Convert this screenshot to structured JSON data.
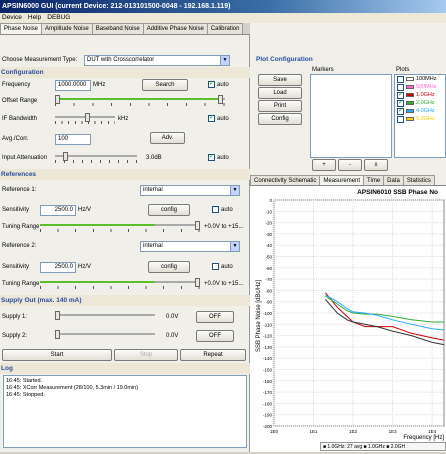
{
  "title": "APSIN6000 GUI (current Device: 212-013101500-0048 - 192.168.1.119)",
  "menu": [
    "Device",
    "Help",
    "DEBUG"
  ],
  "tabs": [
    "Phase Noise",
    "Amplitude Noise",
    "Baseband Noise",
    "Additive Phase Noise",
    "Calibration"
  ],
  "measurement_type": {
    "label": "Choose Measurement Type:",
    "value": "DUT with Crosscorrelator"
  },
  "configuration": {
    "title": "Configuration",
    "frequency_label": "Frequency",
    "frequency_value": "1000.0000",
    "frequency_unit": "MHz",
    "search_label": "Search",
    "offset_label": "Offset Range",
    "bandwidth_label": "IF Bandwidth",
    "bandwidth_unit": "kHz",
    "xcorr_label": "Avg./Corr.",
    "xcorr_value": "100",
    "adv_label": "Adv.",
    "attenuation_label": "Input Attenuation",
    "attenuation_value": "3.0dB",
    "auto_label": "auto"
  },
  "references": {
    "title": "References",
    "ref1_label": "Reference 1:",
    "ref1_source": "internal",
    "ref1_sens_label": "Sensitivity",
    "ref1_sens_value": "2500.0",
    "ref1_sens_unit": "Hz/V",
    "ref1_tuning_label": "Tuning Range",
    "ref1_tuning_value": "+0.0V to +15...",
    "ref2_label": "Reference 2:",
    "ref2_source": "internal",
    "ref2_sens_label": "Sensitivity",
    "ref2_sens_value": "2500.0",
    "ref2_sens_unit": "Hz/V",
    "ref2_tuning_label": "Tuning Range",
    "ref2_tuning_value": "+0.0V to +15...",
    "config_label": "config",
    "auto_label": "auto",
    "ref1_tuning_fraction": 0.72,
    "ref2_tuning_fraction": 0.72
  },
  "supply": {
    "title": "Supply Out (max. 140 mA)",
    "s1_label": "Supply 1:",
    "s1_value": "0.0V",
    "s1_btn": "OFF",
    "s2_label": "Supply 2:",
    "s2_value": "0.0V",
    "s2_btn": "OFF"
  },
  "actions": {
    "start": "Start",
    "stop": "Stop",
    "repeat": "Repeat"
  },
  "log": {
    "title": "Log",
    "lines": [
      "16:45: Started.",
      "16:45: XCorr Measurement (28/100, 5.3min / 19.0min)",
      "16:45: Stopped."
    ]
  },
  "plot_config": {
    "title": "Plot Configuration",
    "markers_label": "Markers",
    "plots_label": "Plots",
    "buttons": [
      "Save",
      "Load",
      "Print",
      "Config"
    ],
    "marker_buttons": [
      "+",
      "-",
      "x"
    ],
    "plots": [
      {
        "name": "100MHz",
        "color": "#ffffff",
        "checked": false
      },
      {
        "name": "500MHz",
        "color": "#ff66cc",
        "checked": false
      },
      {
        "name": "1.0GHz",
        "color": "#cc0000",
        "checked": true
      },
      {
        "name": "2.0GHz",
        "color": "#33aa33",
        "checked": true
      },
      {
        "name": "4.0GHz",
        "color": "#22aaff",
        "checked": true
      },
      {
        "name": "5.0GHz",
        "color": "#ffcc00",
        "checked": false
      }
    ]
  },
  "right_tabs": [
    "Connectivity Schematic",
    "Measurement",
    "Time",
    "Data",
    "Statistics"
  ],
  "legend_text": "■ 1.0GHz: 27 avg  ■ 1.0GHz  ■ 2.0GH",
  "chart_data": {
    "type": "line",
    "title": "APSIN6010 SSB Phase No",
    "xlabel": "Frequency [Hz]",
    "ylabel": "SSB Phase Noise [dBc/Hz]",
    "x_ticks": [
      "1E0",
      "1E1",
      "1E2",
      "1E3",
      "1E4"
    ],
    "y_ticks": [
      0,
      -10,
      -20,
      -30,
      -40,
      -50,
      -60,
      -70,
      -80,
      -90,
      -100,
      -110,
      -120,
      -130,
      -140,
      -150,
      -160,
      -170,
      -180,
      -190,
      -200
    ],
    "ylim": [
      -200,
      0
    ],
    "xlim_log10": [
      0,
      4.3
    ],
    "series": [
      {
        "color": "#cc0000",
        "x": [
          20,
          40,
          70,
          100,
          200,
          400,
          1000,
          3000,
          10000,
          20000
        ],
        "y": [
          -82,
          -95,
          -103,
          -108,
          -112,
          -112,
          -112,
          -118,
          -122,
          -124
        ]
      },
      {
        "color": "#33aa33",
        "x": [
          20,
          40,
          70,
          100,
          200,
          400,
          1000,
          3000,
          10000,
          20000
        ],
        "y": [
          -85,
          -92,
          -98,
          -100,
          -101,
          -101,
          -103,
          -106,
          -108,
          -108
        ]
      },
      {
        "color": "#22aaff",
        "x": [
          20,
          40,
          70,
          100,
          200,
          400,
          1000,
          3000,
          10000,
          20000
        ],
        "y": [
          -84,
          -90,
          -96,
          -99,
          -100,
          -102,
          -106,
          -110,
          -114,
          -115
        ]
      },
      {
        "color": "#333333",
        "x": [
          20,
          40,
          70,
          100,
          200,
          400,
          1000,
          3000,
          10000,
          20000
        ],
        "y": [
          -88,
          -100,
          -106,
          -108,
          -110,
          -112,
          -116,
          -120,
          -126,
          -128
        ]
      }
    ]
  }
}
